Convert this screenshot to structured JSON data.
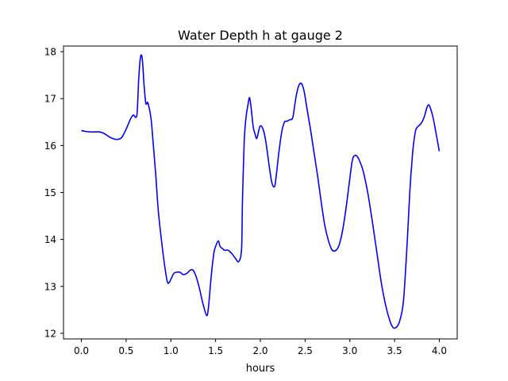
{
  "chart_data": {
    "type": "line",
    "title": "Water Depth h at gauge 2",
    "xlabel": "hours",
    "ylabel": "",
    "xlim": [
      -0.2,
      4.2
    ],
    "ylim": [
      11.88,
      18.12
    ],
    "xticks": [
      0.0,
      0.5,
      1.0,
      1.5,
      2.0,
      2.5,
      3.0,
      3.5,
      4.0
    ],
    "xtick_labels": [
      "0.0",
      "0.5",
      "1.0",
      "1.5",
      "2.0",
      "2.5",
      "3.0",
      "3.5",
      "4.0"
    ],
    "yticks": [
      12,
      13,
      14,
      15,
      16,
      17,
      18
    ],
    "ytick_labels": [
      "12",
      "13",
      "14",
      "15",
      "16",
      "17",
      "18"
    ],
    "grid": false,
    "line_color": "#0000ff",
    "series": [
      {
        "x": [
          0.0,
          0.05,
          0.1,
          0.15,
          0.2,
          0.25,
          0.3,
          0.35,
          0.4,
          0.45,
          0.5,
          0.55,
          0.58,
          0.62,
          0.64,
          0.66,
          0.68,
          0.7,
          0.72,
          0.74,
          0.76,
          0.78,
          0.8,
          0.83,
          0.86,
          0.9,
          0.93,
          0.96,
          0.98,
          1.0,
          1.03,
          1.06,
          1.1,
          1.14,
          1.18,
          1.22,
          1.25,
          1.28,
          1.32,
          1.36,
          1.4,
          1.42,
          1.45,
          1.48,
          1.5,
          1.53,
          1.55,
          1.58,
          1.6,
          1.64,
          1.68,
          1.72,
          1.76,
          1.79,
          1.8,
          1.82,
          1.84,
          1.86,
          1.88,
          1.9,
          1.92,
          1.94,
          1.96,
          1.98,
          2.0,
          2.03,
          2.06,
          2.1,
          2.13,
          2.16,
          2.18,
          2.21,
          2.24,
          2.27,
          2.3,
          2.33,
          2.36,
          2.38,
          2.4,
          2.43,
          2.46,
          2.49,
          2.52,
          2.56,
          2.6,
          2.64,
          2.68,
          2.72,
          2.76,
          2.8,
          2.84,
          2.88,
          2.92,
          2.96,
          3.0,
          3.03,
          3.06,
          3.09,
          3.12,
          3.15,
          3.2,
          3.25,
          3.3,
          3.35,
          3.4,
          3.45,
          3.48,
          3.5,
          3.53,
          3.56,
          3.6,
          3.64,
          3.67,
          3.7,
          3.72,
          3.74,
          3.77,
          3.8,
          3.83,
          3.86,
          3.88,
          3.9,
          3.93,
          3.96,
          4.0
        ],
        "y": [
          16.32,
          16.3,
          16.29,
          16.29,
          16.29,
          16.26,
          16.2,
          16.15,
          16.13,
          16.17,
          16.35,
          16.57,
          16.65,
          16.65,
          17.4,
          17.88,
          17.85,
          17.3,
          16.9,
          16.92,
          16.78,
          16.55,
          16.1,
          15.4,
          14.6,
          13.9,
          13.45,
          13.1,
          13.08,
          13.15,
          13.27,
          13.3,
          13.3,
          13.25,
          13.28,
          13.35,
          13.34,
          13.22,
          12.95,
          12.62,
          12.38,
          12.55,
          13.2,
          13.7,
          13.85,
          13.97,
          13.85,
          13.8,
          13.77,
          13.77,
          13.7,
          13.6,
          13.53,
          13.8,
          14.8,
          16.1,
          16.6,
          16.85,
          17.02,
          16.75,
          16.4,
          16.25,
          16.15,
          16.3,
          16.42,
          16.35,
          16.1,
          15.55,
          15.2,
          15.13,
          15.4,
          15.9,
          16.3,
          16.5,
          16.52,
          16.55,
          16.58,
          16.8,
          17.05,
          17.28,
          17.32,
          17.15,
          16.8,
          16.35,
          15.85,
          15.35,
          14.8,
          14.3,
          13.98,
          13.78,
          13.76,
          13.88,
          14.2,
          14.7,
          15.3,
          15.7,
          15.79,
          15.75,
          15.62,
          15.45,
          15.0,
          14.4,
          13.75,
          13.1,
          12.6,
          12.25,
          12.13,
          12.11,
          12.15,
          12.28,
          12.7,
          13.9,
          15.0,
          15.8,
          16.15,
          16.35,
          16.42,
          16.48,
          16.6,
          16.8,
          16.87,
          16.8,
          16.6,
          16.3,
          15.88
        ]
      }
    ]
  }
}
